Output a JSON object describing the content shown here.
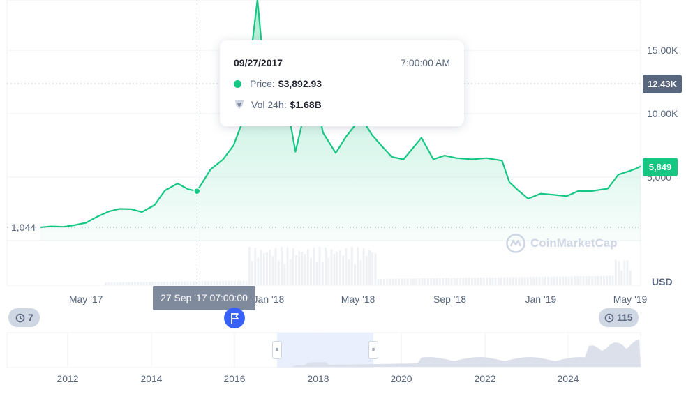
{
  "chart_data": {
    "type": "area",
    "currency": "USD",
    "x_ticks": [
      "May '17",
      "Jan '18",
      "May '18",
      "Sep '18",
      "Jan '19",
      "May '19"
    ],
    "y_ticks": [
      "15.00K",
      "10.00K",
      "5,000"
    ],
    "low_label": "1,044",
    "current_price_label": "5,849",
    "crosshair_label": "12.43K",
    "x_tooltip": "27 Sep '17 07:00:00",
    "tooltip": {
      "date": "09/27/2017",
      "time": "7:00:00 AM",
      "price_label": "Price:",
      "price_value": "$3,892.93",
      "volume_label": "Vol 24h:",
      "volume_value": "$1.68B"
    },
    "series": [
      {
        "x": [
          "2017-03-01",
          "2017-03-15",
          "2017-04-01",
          "2017-04-15",
          "2017-05-01",
          "2017-05-15",
          "2017-06-01",
          "2017-06-15",
          "2017-07-01",
          "2017-07-15",
          "2017-08-01",
          "2017-08-15",
          "2017-09-01",
          "2017-09-15",
          "2017-09-27",
          "2017-10-15",
          "2017-11-01",
          "2017-11-15",
          "2017-12-01",
          "2017-12-10",
          "2017-12-17",
          "2017-12-25",
          "2018-01-01",
          "2018-01-08",
          "2018-01-16",
          "2018-01-25",
          "2018-02-06",
          "2018-02-20",
          "2018-03-05",
          "2018-03-15",
          "2018-04-01",
          "2018-04-15",
          "2018-05-05",
          "2018-05-20",
          "2018-06-01",
          "2018-06-15",
          "2018-07-01",
          "2018-07-25",
          "2018-08-10",
          "2018-08-25",
          "2018-09-10",
          "2018-10-01",
          "2018-10-20",
          "2018-11-10",
          "2018-11-20",
          "2018-12-01",
          "2018-12-15",
          "2019-01-01",
          "2019-01-20",
          "2019-02-05",
          "2019-02-20",
          "2019-03-10",
          "2019-04-01",
          "2019-04-15",
          "2019-05-01",
          "2019-05-10",
          "2019-05-15"
        ],
        "values": [
          1044,
          1120,
          1090,
          1210,
          1400,
          1850,
          2300,
          2500,
          2480,
          2250,
          2800,
          3950,
          4500,
          4050,
          3890,
          5600,
          6400,
          7500,
          10000,
          15500,
          19000,
          14000,
          13500,
          14200,
          11200,
          11000,
          7000,
          10500,
          11300,
          8500,
          6900,
          8200,
          9700,
          8300,
          7500,
          6600,
          6400,
          8100,
          6400,
          6700,
          6500,
          6400,
          6500,
          6300,
          4600,
          4000,
          3300,
          3700,
          3600,
          3500,
          3900,
          3900,
          4100,
          5200,
          5500,
          5700,
          5849
        ]
      }
    ],
    "ylim": [
      0,
      20000
    ]
  },
  "watermark": "CoinMarketCap",
  "axis_unit": "USD",
  "range_left_count": "7",
  "range_right_count": "115",
  "navigator_ticks": [
    "2012",
    "2014",
    "2016",
    "2018",
    "2020",
    "2022",
    "2024"
  ],
  "colors": {
    "line": "#16c784",
    "grey_badge": "#58667e",
    "flag": "#3861fb",
    "selection": "#e8edfd"
  }
}
